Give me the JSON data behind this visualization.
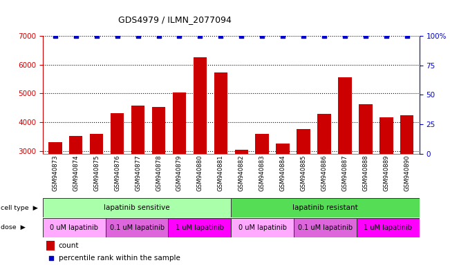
{
  "title": "GDS4979 / ILMN_2077094",
  "samples": [
    "GSM940873",
    "GSM940874",
    "GSM940875",
    "GSM940876",
    "GSM940877",
    "GSM940878",
    "GSM940879",
    "GSM940880",
    "GSM940881",
    "GSM940882",
    "GSM940883",
    "GSM940884",
    "GSM940885",
    "GSM940886",
    "GSM940887",
    "GSM940888",
    "GSM940889",
    "GSM940890"
  ],
  "counts": [
    3300,
    3520,
    3580,
    4300,
    4580,
    4520,
    5020,
    6260,
    5720,
    3030,
    3580,
    3260,
    3750,
    4280,
    5560,
    4610,
    4160,
    4230
  ],
  "percentile_ranks": [
    100,
    100,
    100,
    100,
    100,
    100,
    100,
    100,
    100,
    100,
    100,
    100,
    100,
    100,
    100,
    100,
    100,
    100
  ],
  "bar_color": "#cc0000",
  "percentile_color": "#0000cc",
  "ylim_left": [
    2900,
    7000
  ],
  "ylim_right": [
    0,
    100
  ],
  "yticks_left": [
    3000,
    4000,
    5000,
    6000,
    7000
  ],
  "yticks_right": [
    0,
    25,
    50,
    75,
    100
  ],
  "cell_type_groups": [
    {
      "label": "lapatinib sensitive",
      "start": 0,
      "end": 9,
      "color": "#aaffaa"
    },
    {
      "label": "lapatinib resistant",
      "start": 9,
      "end": 18,
      "color": "#55dd55"
    }
  ],
  "dose_groups": [
    {
      "label": "0 uM lapatinib",
      "start": 0,
      "end": 3,
      "color": "#ffaaff"
    },
    {
      "label": "0.1 uM lapatinib",
      "start": 3,
      "end": 6,
      "color": "#dd66dd"
    },
    {
      "label": "1 uM lapatinib",
      "start": 6,
      "end": 9,
      "color": "#ff00ff"
    },
    {
      "label": "0 uM lapatinib",
      "start": 9,
      "end": 12,
      "color": "#ffaaff"
    },
    {
      "label": "0.1 uM lapatinib",
      "start": 12,
      "end": 15,
      "color": "#dd66dd"
    },
    {
      "label": "1 uM lapatinib",
      "start": 15,
      "end": 18,
      "color": "#ff00ff"
    }
  ],
  "background_color": "#ffffff",
  "tick_label_color_left": "#cc0000",
  "tick_label_color_right": "#0000cc"
}
